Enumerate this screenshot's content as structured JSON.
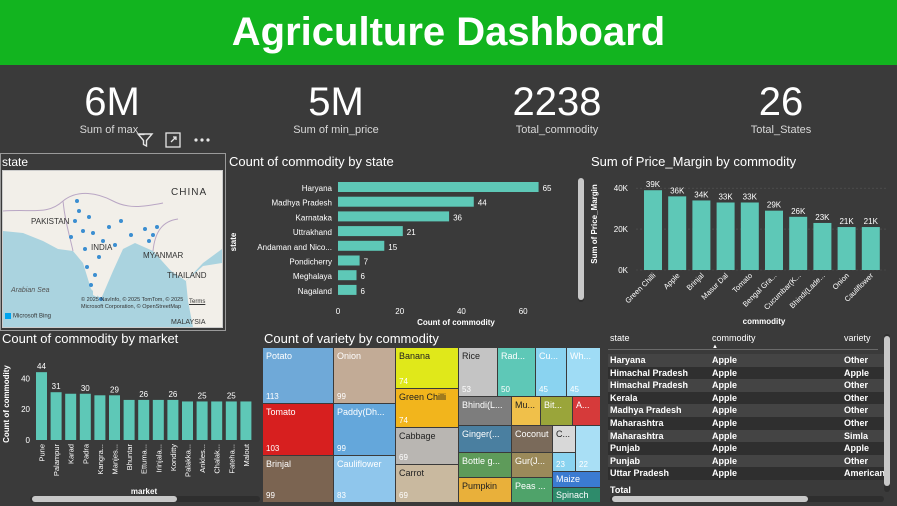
{
  "header": {
    "title": "Agriculture Dashboard"
  },
  "kpis": [
    {
      "value": "6M",
      "label": "Sum of max_"
    },
    {
      "value": "5M",
      "label": "Sum of min_price"
    },
    {
      "value": "2238",
      "label": "Total_commodity"
    },
    {
      "value": "26",
      "label": "Total_States"
    }
  ],
  "map": {
    "title": "state",
    "labels": {
      "china": "CHINA",
      "pakistan": "PAKISTAN",
      "india": "INDIA",
      "myanmar": "MYANMAR",
      "thailand": "THAILAND",
      "malaysia": "MALAYSIA",
      "arabian_sea": "Arabian Sea",
      "terms": "Terms"
    },
    "attribution": "© 2025 NavInfo, © 2025 TomTom, © 2025 Microsoft Corporation, © OpenStreetMap",
    "brand": "Microsoft Bing"
  },
  "colors": {
    "bar": "#5ec8b7",
    "header": "#12b41f",
    "bg": "#3a3a3a"
  },
  "chart_data": [
    {
      "type": "bar",
      "orientation": "horizontal",
      "title": "Count of commodity by state",
      "xlabel": "Count of commodity",
      "ylabel": "state",
      "categories": [
        "Haryana",
        "Madhya Pradesh",
        "Karnataka",
        "Uttrakhand",
        "Andaman and Nico...",
        "Pondicherry",
        "Meghalaya",
        "Nagaland"
      ],
      "values": [
        65,
        44,
        36,
        21,
        15,
        7,
        6,
        6
      ],
      "xticks": [
        "0",
        "20",
        "40",
        "60"
      ],
      "xlim": [
        0,
        70
      ]
    },
    {
      "type": "bar",
      "title": "Sum of Price_Margin by commodity",
      "xlabel": "commodity",
      "ylabel": "Sum of Price_Margin",
      "categories": [
        "Green Chilli",
        "Apple",
        "Brinjal",
        "Masur Dal",
        "Tomato",
        "Bengal Gra...",
        "Cucumbar(K...",
        "Bhindi(Lade...",
        "Onion",
        "Cauliflower"
      ],
      "values": [
        39,
        36,
        34,
        33,
        33,
        29,
        26,
        23,
        21,
        21
      ],
      "labels": [
        "39K",
        "36K",
        "34K",
        "33K",
        "33K",
        "29K",
        "26K",
        "23K",
        "21K",
        "21K"
      ],
      "yticks": [
        "0K",
        "20K",
        "40K"
      ],
      "ylim": [
        0,
        44
      ]
    },
    {
      "type": "bar",
      "title": "Count of commodity by market",
      "xlabel": "market",
      "ylabel": "Count of commodity",
      "categories": [
        "Pune",
        "Palampur",
        "Karad",
        "Padra",
        "Kangra...",
        "Manjes...",
        "Bhuntar",
        "Ettuma...",
        "Irinjala...",
        "Konditty",
        "Palakka...",
        "Ankles...",
        "Chalak...",
        "Fateha...",
        "Malout"
      ],
      "values": [
        44,
        31,
        30,
        30,
        29,
        29,
        26,
        26,
        26,
        26,
        25,
        25,
        25,
        25,
        25
      ],
      "labels": [
        "44",
        "31",
        "",
        "30",
        "",
        "29",
        "",
        "26",
        "",
        "26",
        "",
        "25",
        "",
        "25",
        ""
      ],
      "yticks": [
        "0",
        "20",
        "40"
      ],
      "ylim": [
        0,
        48
      ]
    },
    {
      "type": "heatmap",
      "subtype": "treemap",
      "title": "Count of variety by commodity",
      "items": [
        {
          "name": "Potato",
          "value": "113"
        },
        {
          "name": "Tomato",
          "value": "103"
        },
        {
          "name": "Brinjal",
          "value": "99"
        },
        {
          "name": "Onion",
          "value": "99"
        },
        {
          "name": "Paddy(Dh...",
          "value": "99"
        },
        {
          "name": "Cauliflower",
          "value": "83"
        },
        {
          "name": "Banana",
          "value": "74"
        },
        {
          "name": "Green Chilli",
          "value": "74"
        },
        {
          "name": "Cabbage",
          "value": "69"
        },
        {
          "name": "Carrot",
          "value": "69"
        },
        {
          "name": "Rice",
          "value": "53"
        },
        {
          "name": "Rad...",
          "value": "50"
        },
        {
          "name": "Cu...",
          "value": "45"
        },
        {
          "name": "Wh...",
          "value": "45"
        },
        {
          "name": "Bhindi(L...",
          "value": ""
        },
        {
          "name": "Mu...",
          "value": ""
        },
        {
          "name": "Bit...",
          "value": ""
        },
        {
          "name": "A...",
          "value": ""
        },
        {
          "name": "Ginger(...",
          "value": ""
        },
        {
          "name": "Coconut",
          "value": ""
        },
        {
          "name": "C...",
          "value": ""
        },
        {
          "name": "Bottle g...",
          "value": ""
        },
        {
          "name": "Gur(J...",
          "value": ""
        },
        {
          "name": "",
          "value": "23"
        },
        {
          "name": "",
          "value": "22"
        },
        {
          "name": "Pumpkin",
          "value": ""
        },
        {
          "name": "Peas ...",
          "value": ""
        },
        {
          "name": "Maize",
          "value": ""
        },
        {
          "name": "Spinach",
          "value": ""
        }
      ]
    }
  ],
  "table": {
    "headers": [
      "state",
      "commodity",
      "variety"
    ],
    "rows": [
      [
        "Haryana",
        "Apple",
        "Other"
      ],
      [
        "Himachal Pradesh",
        "Apple",
        "Apple"
      ],
      [
        "Himachal Pradesh",
        "Apple",
        "Other"
      ],
      [
        "Kerala",
        "Apple",
        "Other"
      ],
      [
        "Madhya Pradesh",
        "Apple",
        "Other"
      ],
      [
        "Maharashtra",
        "Apple",
        "Other"
      ],
      [
        "Maharashtra",
        "Apple",
        "Simla"
      ],
      [
        "Punjab",
        "Apple",
        "Apple"
      ],
      [
        "Punjab",
        "Apple",
        "Other"
      ],
      [
        "Uttar Pradesh",
        "Apple",
        "American"
      ]
    ],
    "total_label": "Total"
  }
}
